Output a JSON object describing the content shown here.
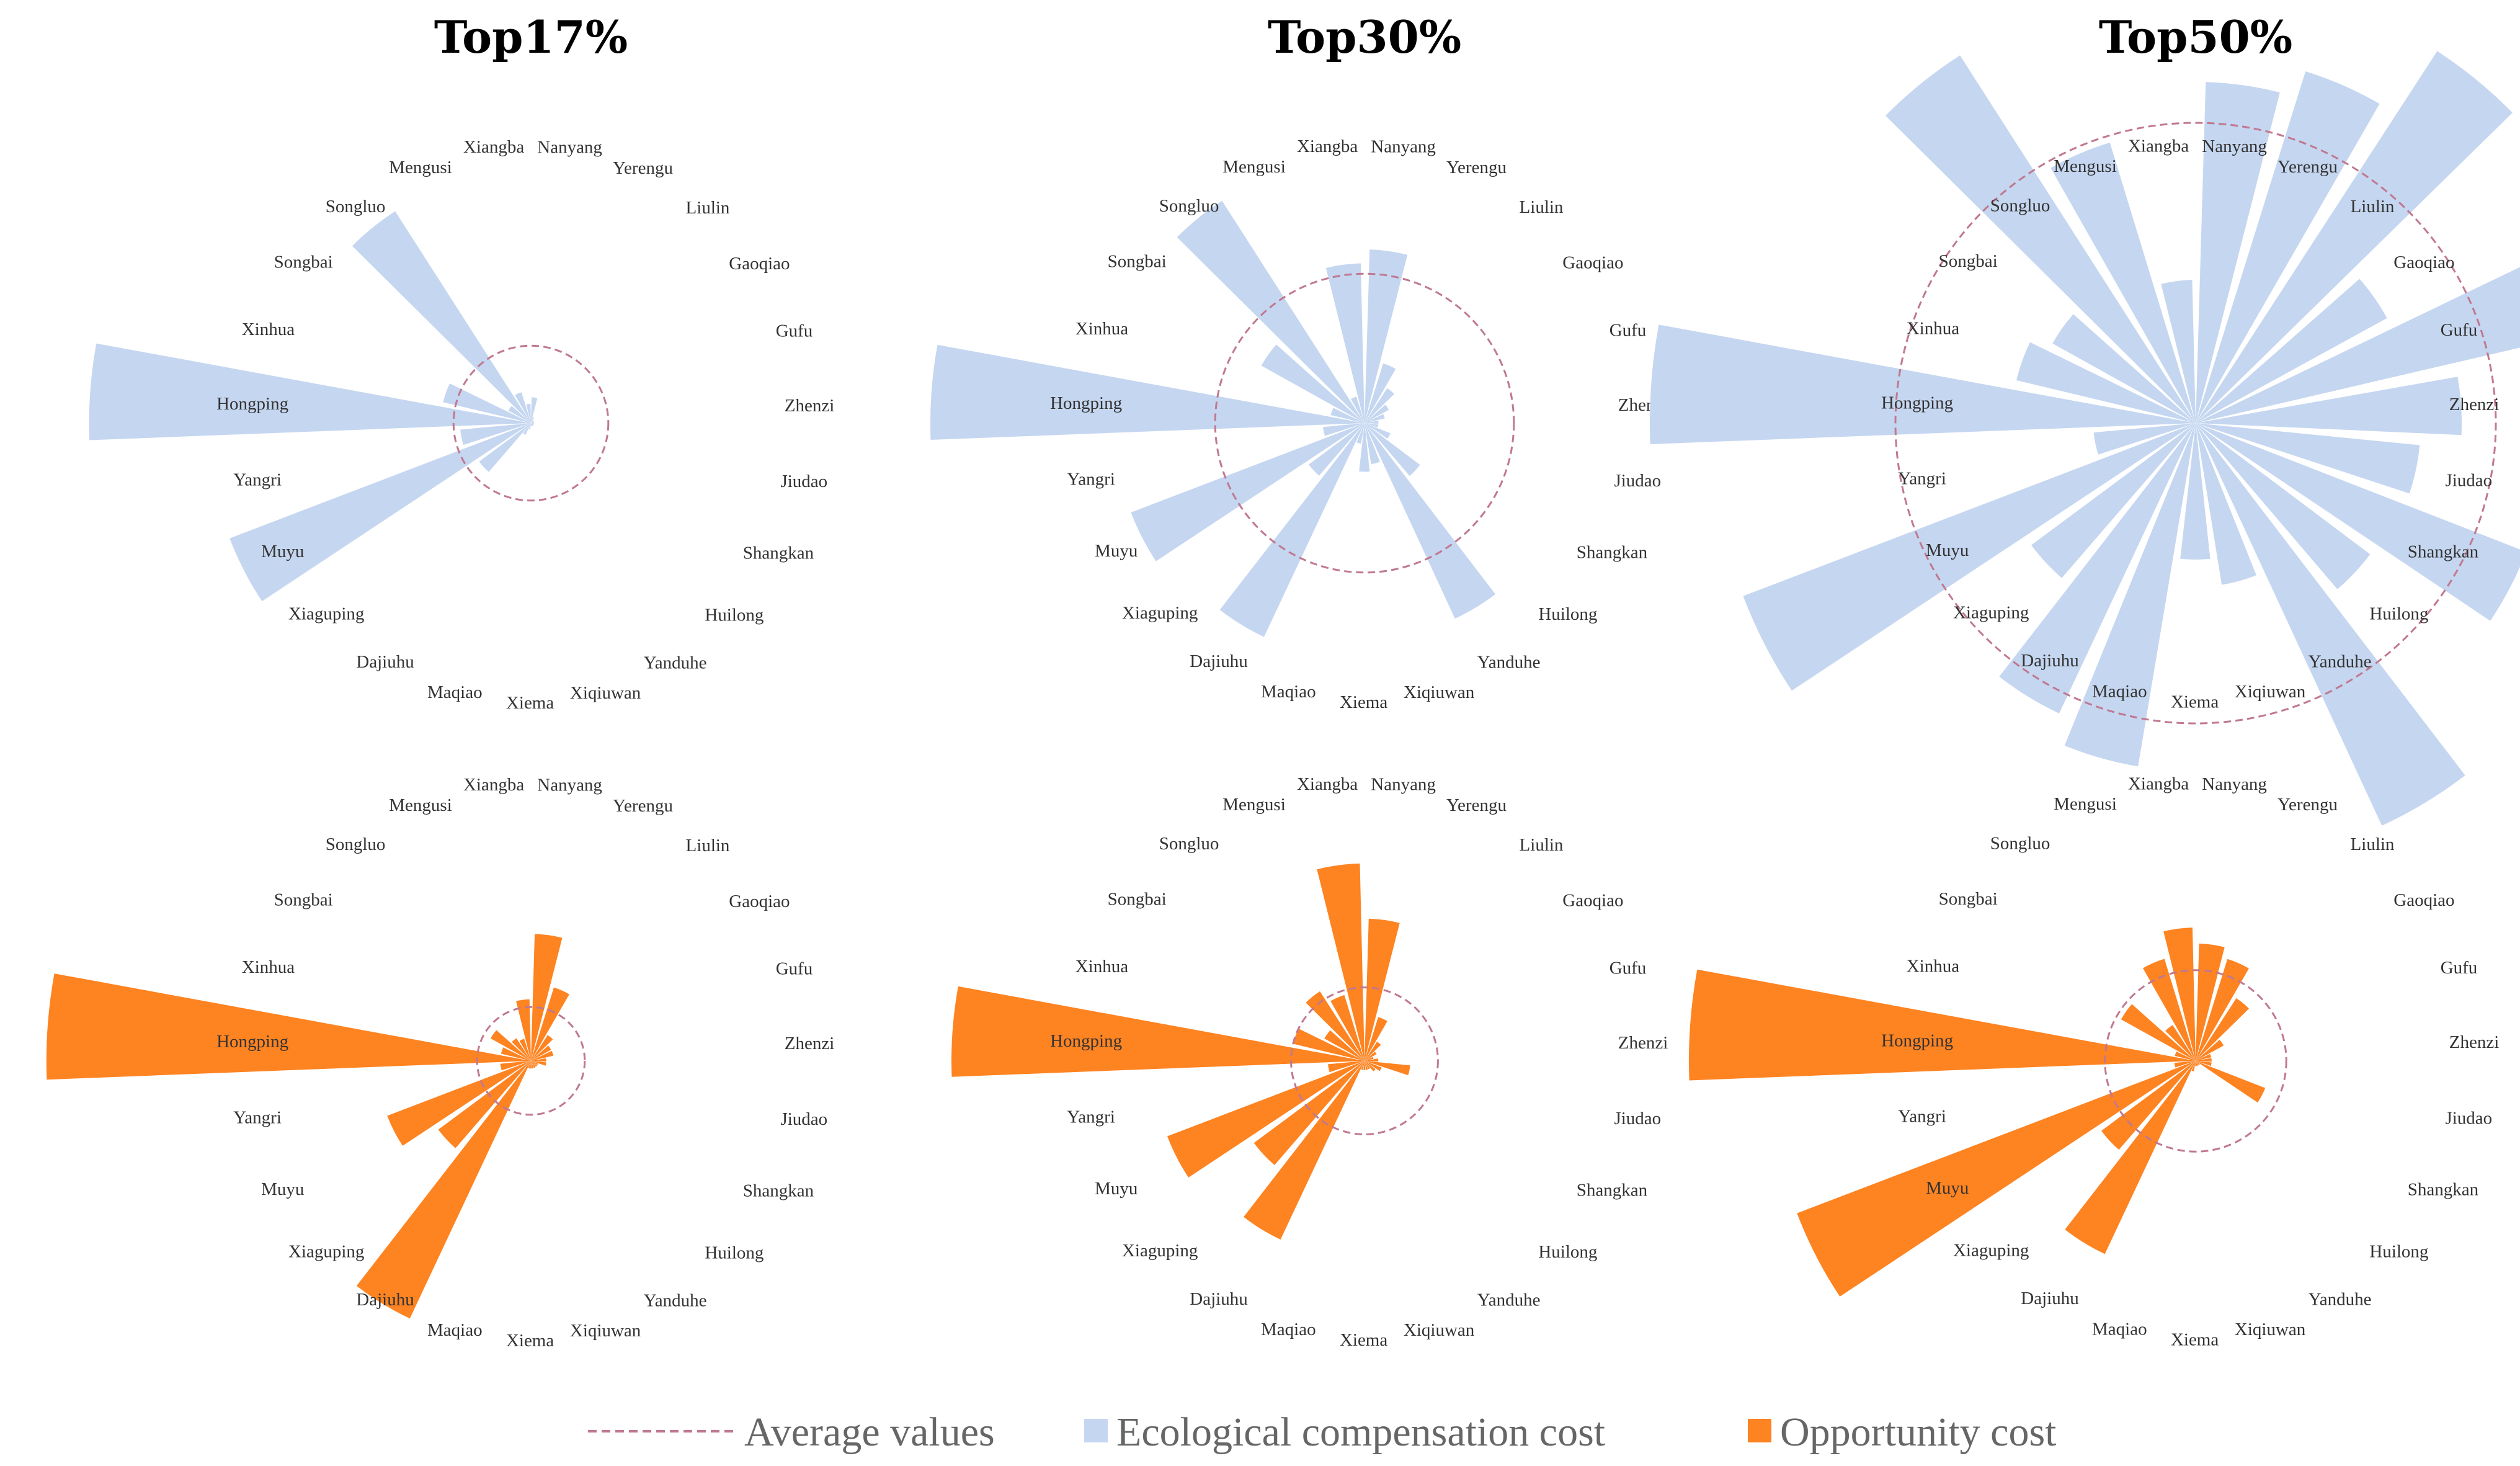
{
  "figure": {
    "legend": {
      "average": "Average values",
      "eco": "Ecological compensation cost",
      "opp": "Opportunity cost"
    },
    "colors": {
      "eco": "#c5d6f0",
      "opp": "#fe8321",
      "average": "#c07890",
      "label": "#333333"
    }
  },
  "chart_data": [
    {
      "type": "polar-bar",
      "title": "Top17%",
      "series": "Ecological compensation cost",
      "categories": [
        "Nanyang",
        "Yerengu",
        "Liulin",
        "Gaoqiao",
        "Gufu",
        "Zhenzi",
        "Jiudao",
        "Shangkan",
        "Huilong",
        "Yanduhe",
        "Xiqiuwan",
        "Xiema",
        "Maqiao",
        "Dajiuhu",
        "Xiaguping",
        "Muyu",
        "Yangri",
        "Hongping",
        "Xinhua",
        "Songbai",
        "Songluo",
        "Mengusi",
        "Xiangba"
      ],
      "values": [
        0.08,
        0.02,
        0.01,
        0.01,
        0.01,
        0.01,
        0.01,
        0.01,
        0.01,
        0.01,
        0.01,
        0.01,
        0.02,
        0.04,
        0.2,
        1.0,
        0.22,
        1.37,
        0.28,
        0.08,
        0.78,
        0.1,
        0.06
      ],
      "average": 0.24
    },
    {
      "type": "polar-bar",
      "title": "Top30%",
      "series": "Ecological compensation cost",
      "categories": [
        "Nanyang",
        "Yerengu",
        "Liulin",
        "Gaoqiao",
        "Gufu",
        "Zhenzi",
        "Jiudao",
        "Shangkan",
        "Huilong",
        "Yanduhe",
        "Xiqiuwan",
        "Xiema",
        "Maqiao",
        "Dajiuhu",
        "Xiaguping",
        "Muyu",
        "Yangri",
        "Hongping",
        "Xinhua",
        "Songbai",
        "Songluo",
        "Mengusi",
        "Xiangba"
      ],
      "values": [
        0.5,
        0.18,
        0.12,
        0.08,
        0.06,
        0.04,
        0.04,
        0.08,
        0.2,
        0.62,
        0.12,
        0.14,
        0.06,
        0.68,
        0.2,
        0.72,
        0.12,
        1.25,
        0.1,
        0.34,
        0.76,
        0.08,
        0.46
      ],
      "average": 0.43
    },
    {
      "type": "polar-bar",
      "title": "Top50%",
      "series": "Ecological compensation cost",
      "categories": [
        "Nanyang",
        "Yerengu",
        "Liulin",
        "Gaoqiao",
        "Gufu",
        "Zhenzi",
        "Jiudao",
        "Shangkan",
        "Huilong",
        "Yanduhe",
        "Xiqiuwan",
        "Xiema",
        "Maqiao",
        "Dajiuhu",
        "Xiaguping",
        "Muyu",
        "Yangri",
        "Hongping",
        "Xinhua",
        "Songbai",
        "Songluo",
        "Mengusi",
        "Xiangba"
      ],
      "values": [
        0.5,
        0.54,
        0.65,
        0.32,
        0.53,
        0.39,
        0.33,
        0.52,
        0.32,
        0.65,
        0.24,
        0.2,
        0.51,
        0.47,
        0.3,
        0.71,
        0.15,
        0.8,
        0.27,
        0.24,
        0.64,
        0.43,
        0.21
      ],
      "average": 0.44
    },
    {
      "type": "polar-bar",
      "title": "",
      "series": "Opportunity cost",
      "categories": [
        "Nanyang",
        "Yerengu",
        "Liulin",
        "Gaoqiao",
        "Gufu",
        "Zhenzi",
        "Jiudao",
        "Shangkan",
        "Huilong",
        "Yanduhe",
        "Xiqiuwan",
        "Xiema",
        "Maqiao",
        "Dajiuhu",
        "Xiaguping",
        "Muyu",
        "Yangri",
        "Hongping",
        "Xinhua",
        "Songbai",
        "Songluo",
        "Mengusi",
        "Xiangba"
      ],
      "values": [
        0.33,
        0.2,
        0.08,
        0.06,
        0.06,
        0.04,
        0.04,
        0.02,
        0.02,
        0.02,
        0.02,
        0.02,
        0.02,
        0.74,
        0.3,
        0.4,
        0.08,
        1.26,
        0.08,
        0.12,
        0.07,
        0.06,
        0.16
      ],
      "average": 0.14
    },
    {
      "type": "polar-bar",
      "title": "",
      "series": "Opportunity cost",
      "categories": [
        "Nanyang",
        "Yerengu",
        "Liulin",
        "Gaoqiao",
        "Gufu",
        "Zhenzi",
        "Jiudao",
        "Shangkan",
        "Huilong",
        "Yanduhe",
        "Xiqiuwan",
        "Xiema",
        "Maqiao",
        "Dajiuhu",
        "Xiaguping",
        "Muyu",
        "Yangri",
        "Hongping",
        "Xinhua",
        "Songbai",
        "Songluo",
        "Mengusi",
        "Xiangba"
      ],
      "values": [
        0.31,
        0.1,
        0.05,
        0.03,
        0.02,
        0.03,
        0.1,
        0.04,
        0.03,
        0.02,
        0.02,
        0.02,
        0.02,
        0.43,
        0.3,
        0.46,
        0.08,
        0.9,
        0.16,
        0.1,
        0.18,
        0.15,
        0.43
      ],
      "average": 0.16
    },
    {
      "type": "polar-bar",
      "title": "",
      "series": "Opportunity cost",
      "categories": [
        "Nanyang",
        "Yerengu",
        "Liulin",
        "Gaoqiao",
        "Gufu",
        "Zhenzi",
        "Jiudao",
        "Shangkan",
        "Huilong",
        "Yanduhe",
        "Xiqiuwan",
        "Xiema",
        "Maqiao",
        "Dajiuhu",
        "Xiaguping",
        "Muyu",
        "Yangri",
        "Hongping",
        "Xinhua",
        "Songbai",
        "Songluo",
        "Mengusi",
        "Xiangba"
      ],
      "values": [
        0.22,
        0.2,
        0.14,
        0.06,
        0.03,
        0.03,
        0.03,
        0.14,
        0.01,
        0.01,
        0.01,
        0.01,
        0.02,
        0.4,
        0.22,
        0.8,
        0.04,
        0.95,
        0.04,
        0.16,
        0.08,
        0.2,
        0.25
      ],
      "average": 0.17
    }
  ]
}
